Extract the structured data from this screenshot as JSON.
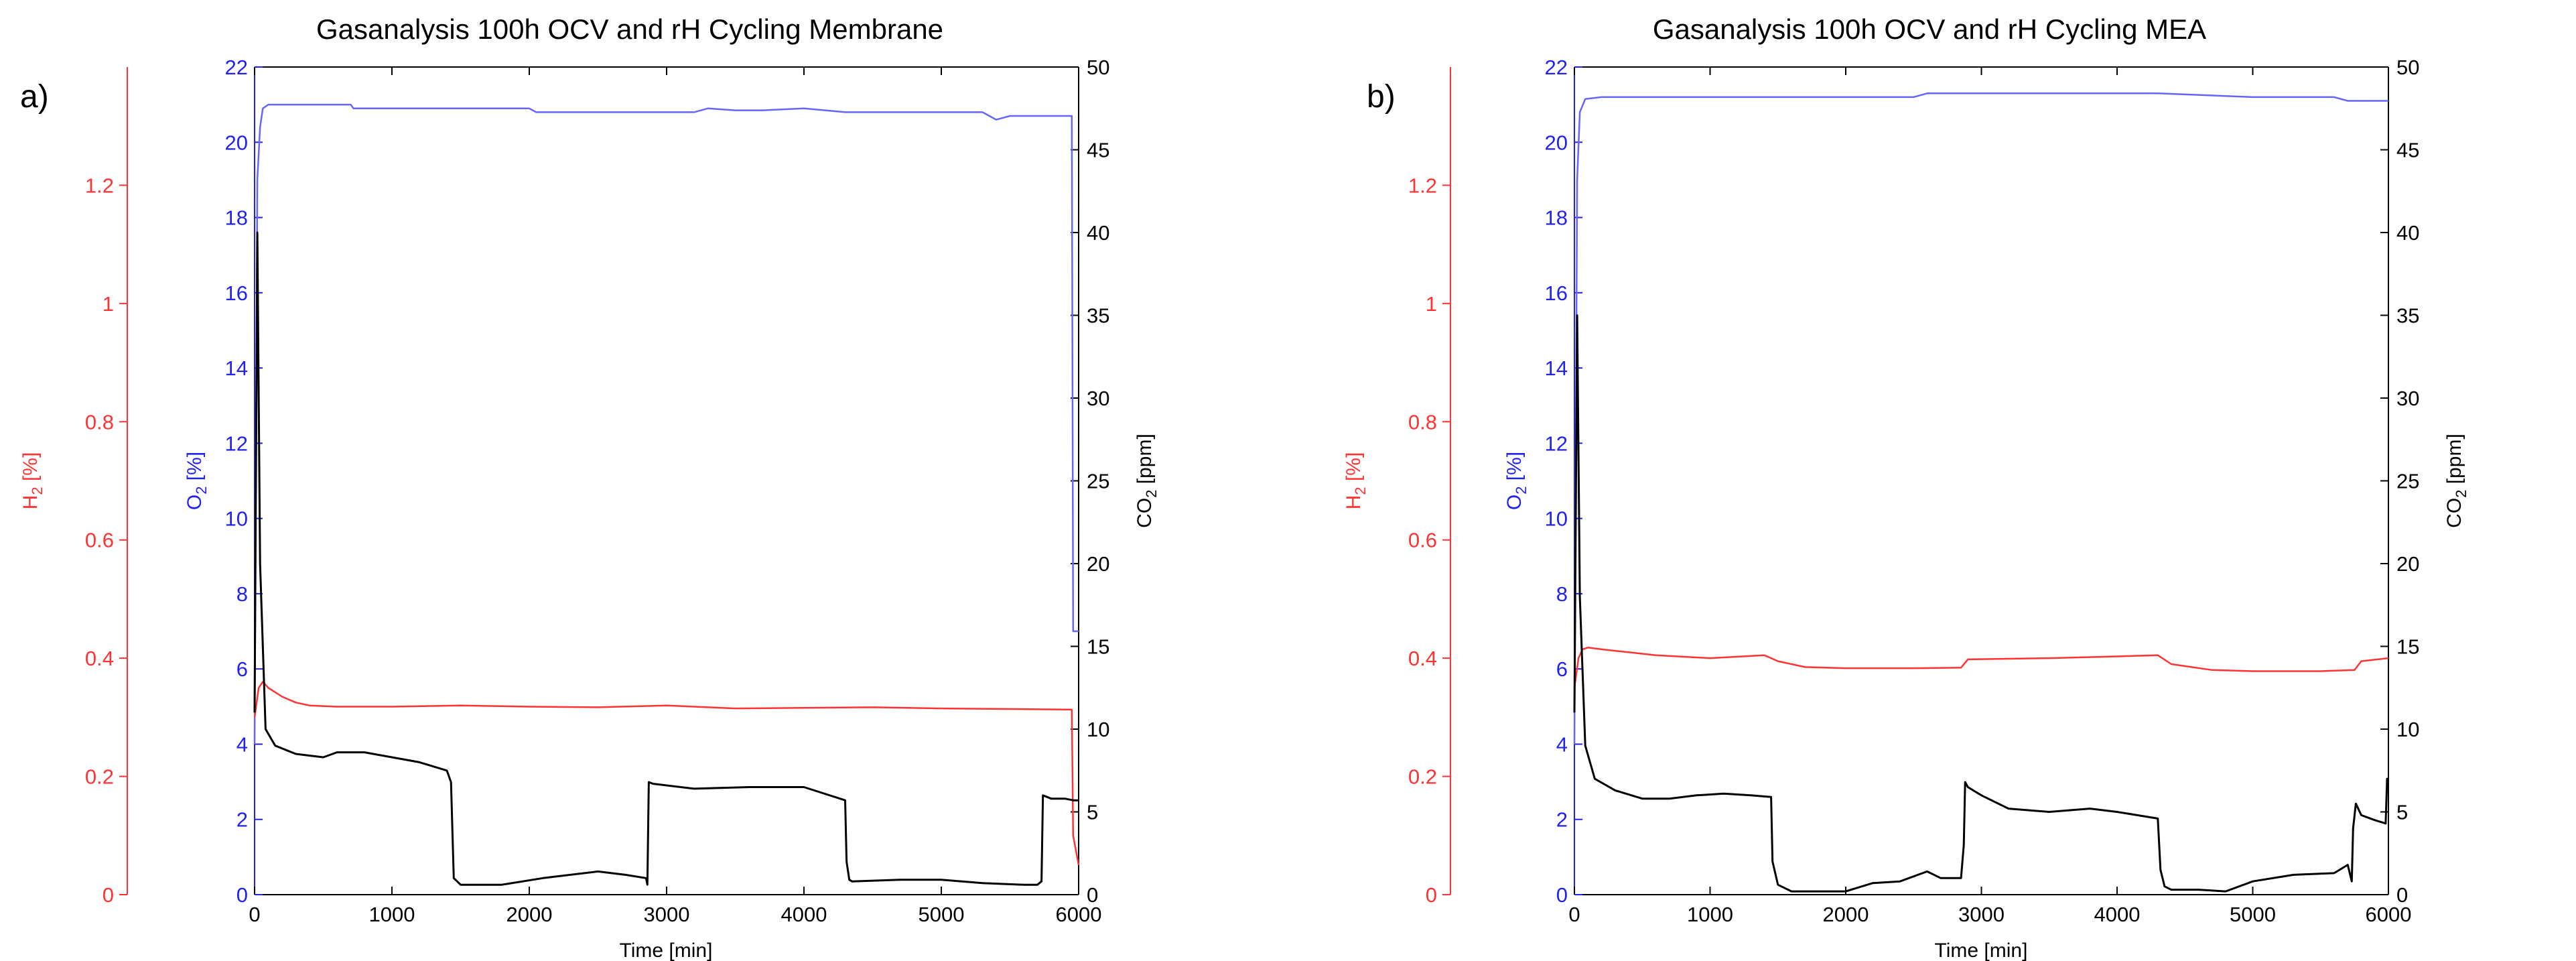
{
  "chart_data": [
    {
      "panel_label": "a)",
      "type": "line",
      "title": "Gasanalysis 100h OCV and rH Cycling Membrane",
      "xlabel": "Time [min]",
      "xlim": [
        0,
        6000
      ],
      "xticks": [
        "0",
        "1000",
        "2000",
        "3000",
        "4000",
        "5000",
        "6000"
      ],
      "axes": {
        "h2": {
          "label_main": "H",
          "label_sub": "2",
          "label_unit": " [%]",
          "color": "#ff3333",
          "lim": [
            0,
            1.4
          ],
          "ticks": [
            "0",
            "0.2",
            "0.4",
            "0.6",
            "0.8",
            "1",
            "1.2"
          ]
        },
        "o2": {
          "label_main": "O",
          "label_sub": "2",
          "label_unit": " [%]",
          "color": "#2222ee",
          "lim": [
            0,
            22
          ],
          "ticks": [
            "0",
            "2",
            "4",
            "6",
            "8",
            "10",
            "12",
            "14",
            "16",
            "18",
            "20",
            "22"
          ]
        },
        "co2": {
          "label_main": "CO",
          "label_sub": "2",
          "label_unit": " [ppm]",
          "color": "#000000",
          "lim": [
            0,
            50
          ],
          "ticks": [
            "0",
            "5",
            "10",
            "15",
            "20",
            "25",
            "30",
            "35",
            "40",
            "45",
            "50"
          ]
        }
      },
      "series": [
        {
          "name": "O2",
          "axis": "o2",
          "color": "#6666ff",
          "x": [
            0,
            20,
            40,
            60,
            100,
            200,
            700,
            720,
            1000,
            2000,
            2050,
            2500,
            2900,
            3200,
            3300,
            3500,
            3700,
            4000,
            4300,
            5000,
            5300,
            5400,
            5500,
            5600,
            5950,
            5960,
            6000
          ],
          "y": [
            4,
            19,
            20.4,
            20.9,
            21.0,
            21.0,
            21.0,
            20.9,
            20.9,
            20.9,
            20.8,
            20.8,
            20.8,
            20.8,
            20.9,
            20.85,
            20.85,
            20.9,
            20.8,
            20.8,
            20.8,
            20.6,
            20.7,
            20.7,
            20.7,
            7,
            7
          ]
        },
        {
          "name": "H2",
          "axis": "h2",
          "color": "#ff3333",
          "x": [
            0,
            30,
            60,
            100,
            200,
            300,
            400,
            600,
            1000,
            1500,
            2000,
            2500,
            3000,
            3500,
            4000,
            4500,
            5000,
            5500,
            5950,
            5960,
            6000
          ],
          "y": [
            0.3,
            0.35,
            0.36,
            0.35,
            0.335,
            0.325,
            0.32,
            0.318,
            0.318,
            0.32,
            0.318,
            0.317,
            0.32,
            0.315,
            0.316,
            0.317,
            0.315,
            0.314,
            0.313,
            0.1,
            0.05
          ]
        },
        {
          "name": "CO2",
          "axis": "co2",
          "color": "#000000",
          "x": [
            0,
            20,
            40,
            80,
            150,
            300,
            500,
            600,
            800,
            1000,
            1200,
            1400,
            1430,
            1450,
            1500,
            1800,
            2100,
            2500,
            2700,
            2850,
            2860,
            2870,
            2900,
            3200,
            3600,
            4000,
            4300,
            4310,
            4330,
            4350,
            4700,
            5000,
            5300,
            5600,
            5700,
            5730,
            5740,
            5800,
            5900,
            5960,
            5970,
            6000
          ],
          "y": [
            11,
            40,
            20,
            10,
            9,
            8.5,
            8.3,
            8.6,
            8.6,
            8.3,
            8.0,
            7.5,
            6.8,
            1.0,
            0.6,
            0.6,
            1.0,
            1.4,
            1.2,
            1.0,
            0.6,
            6.8,
            6.7,
            6.4,
            6.5,
            6.5,
            5.7,
            2.0,
            0.9,
            0.8,
            0.9,
            0.9,
            0.7,
            0.6,
            0.6,
            0.8,
            6.0,
            5.8,
            5.8,
            5.7,
            5.7,
            5.7
          ]
        }
      ]
    },
    {
      "panel_label": "b)",
      "type": "line",
      "title": "Gasanalysis 100h OCV and rH Cycling MEA",
      "xlabel": "Time [min]",
      "xlim": [
        0,
        6000
      ],
      "xticks": [
        "0",
        "1000",
        "2000",
        "3000",
        "4000",
        "5000",
        "6000"
      ],
      "axes": {
        "h2": {
          "label_main": "H",
          "label_sub": "2",
          "label_unit": " [%]",
          "color": "#ff3333",
          "lim": [
            0,
            1.4
          ],
          "ticks": [
            "0",
            "0.2",
            "0.4",
            "0.6",
            "0.8",
            "1",
            "1.2"
          ]
        },
        "o2": {
          "label_main": "O",
          "label_sub": "2",
          "label_unit": " [%]",
          "color": "#2222ee",
          "lim": [
            0,
            22
          ],
          "ticks": [
            "0",
            "2",
            "4",
            "6",
            "8",
            "10",
            "12",
            "14",
            "16",
            "18",
            "20",
            "22"
          ]
        },
        "co2": {
          "label_main": "CO",
          "label_sub": "2",
          "label_unit": " [ppm]",
          "color": "#000000",
          "lim": [
            0,
            50
          ],
          "ticks": [
            "0",
            "5",
            "10",
            "15",
            "20",
            "25",
            "30",
            "35",
            "40",
            "45",
            "50"
          ]
        }
      },
      "series": [
        {
          "name": "O2",
          "axis": "o2",
          "color": "#6666ff",
          "x": [
            0,
            20,
            40,
            80,
            200,
            700,
            1000,
            1200,
            2500,
            2600,
            2800,
            3000,
            3500,
            4000,
            4300,
            5000,
            5600,
            5700,
            5800,
            6000
          ],
          "y": [
            4,
            19,
            20.8,
            21.15,
            21.2,
            21.2,
            21.2,
            21.2,
            21.2,
            21.3,
            21.3,
            21.3,
            21.3,
            21.3,
            21.3,
            21.2,
            21.2,
            21.1,
            21.1,
            21.1
          ]
        },
        {
          "name": "H2",
          "axis": "h2",
          "color": "#ff3333",
          "x": [
            0,
            30,
            60,
            100,
            200,
            400,
            600,
            1000,
            1400,
            1500,
            1700,
            2000,
            2500,
            2850,
            2900,
            3500,
            4000,
            4300,
            4400,
            4700,
            5000,
            5500,
            5750,
            5800,
            6000
          ],
          "y": [
            0.35,
            0.4,
            0.415,
            0.418,
            0.415,
            0.41,
            0.405,
            0.4,
            0.405,
            0.395,
            0.385,
            0.383,
            0.383,
            0.384,
            0.398,
            0.4,
            0.403,
            0.405,
            0.39,
            0.38,
            0.378,
            0.378,
            0.38,
            0.395,
            0.4
          ]
        },
        {
          "name": "CO2",
          "axis": "co2",
          "color": "#000000",
          "x": [
            0,
            20,
            40,
            80,
            150,
            300,
            500,
            700,
            900,
            1100,
            1300,
            1450,
            1460,
            1500,
            1600,
            1800,
            2000,
            2200,
            2400,
            2600,
            2700,
            2850,
            2870,
            2880,
            2900,
            3000,
            3200,
            3500,
            3800,
            4000,
            4300,
            4320,
            4350,
            4400,
            4600,
            4800,
            5000,
            5300,
            5600,
            5700,
            5730,
            5740,
            5760,
            5800,
            5900,
            5980,
            5990,
            6000
          ],
          "y": [
            11,
            35,
            18,
            9,
            7,
            6.3,
            5.8,
            5.8,
            6.0,
            6.1,
            6.0,
            5.9,
            2.0,
            0.6,
            0.2,
            0.2,
            0.2,
            0.7,
            0.8,
            1.4,
            1.0,
            1.0,
            3.0,
            6.8,
            6.5,
            6.0,
            5.2,
            5.0,
            5.2,
            5.0,
            4.6,
            1.5,
            0.5,
            0.3,
            0.3,
            0.2,
            0.8,
            1.2,
            1.3,
            1.8,
            0.8,
            4.0,
            5.5,
            4.8,
            4.5,
            4.3,
            7.0,
            7.0
          ]
        }
      ]
    }
  ]
}
